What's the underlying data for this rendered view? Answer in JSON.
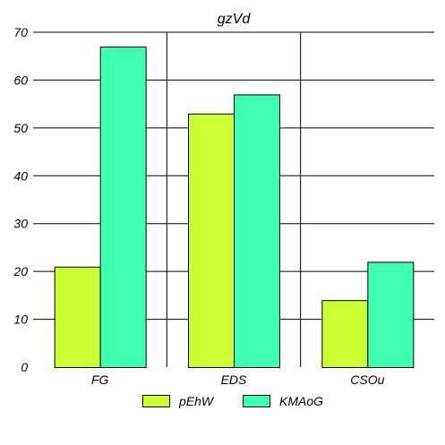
{
  "chart_data": {
    "type": "bar",
    "title": "gzVd",
    "xlabel": "",
    "ylabel": "",
    "categories": [
      "FG",
      "EDS",
      "CSOu"
    ],
    "series": [
      {
        "name": "pEhW",
        "values": [
          21,
          53,
          14
        ],
        "color": "#ccff33"
      },
      {
        "name": "KMAoG",
        "values": [
          67,
          57,
          22
        ],
        "color": "#40ffb0"
      }
    ],
    "ylim": [
      0,
      70
    ],
    "yticks": [
      0,
      10,
      20,
      30,
      40,
      50,
      60,
      70
    ],
    "grid": {
      "horizontal": true,
      "vertical": true
    },
    "legend_position": "bottom"
  }
}
